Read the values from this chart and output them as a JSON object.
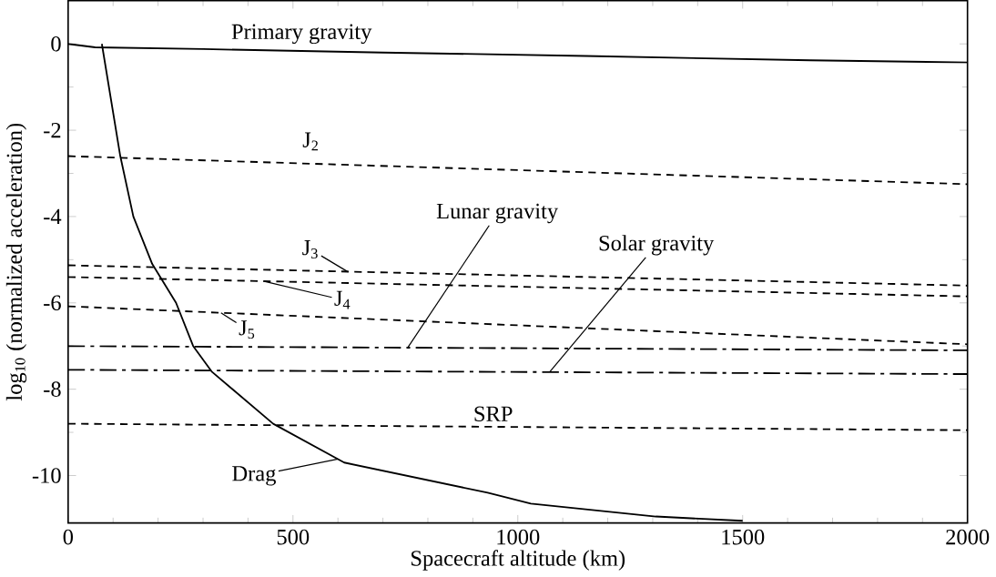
{
  "chart_data": {
    "type": "line",
    "xlabel": "Spacecraft altitude (km)",
    "ylabel": "log$_{10}$ (normalized acceleration)",
    "xlim": [
      0,
      2000
    ],
    "ylim": [
      -11.1,
      1
    ],
    "xticks": [
      0,
      500,
      1000,
      1500,
      2000
    ],
    "yticks": [
      -10,
      -8,
      -6,
      -4,
      -2,
      0
    ],
    "grid": false,
    "marker": "none",
    "series": [
      {
        "color": "#000000",
        "line_style": "solid",
        "x": [
          0,
          60,
          300,
          700,
          1150,
          1650,
          2000
        ],
        "values": [
          0,
          -0.08,
          -0.12,
          -0.2,
          -0.28,
          -0.38,
          -0.43
        ]
      },
      {
        "color": "#000000",
        "line_style": "dashed",
        "x": [
          0,
          2000
        ],
        "values": [
          -2.6,
          -3.25
        ]
      },
      {
        "color": "#000000",
        "line_style": "dashed",
        "x": [
          0,
          2000
        ],
        "values": [
          -5.13,
          -5.6
        ]
      },
      {
        "color": "#000000",
        "line_style": "dashed",
        "x": [
          0,
          2000
        ],
        "values": [
          -5.4,
          -5.85
        ]
      },
      {
        "color": "#000000",
        "line_style": "dashed",
        "x": [
          0,
          2000
        ],
        "values": [
          -6.08,
          -6.96
        ]
      },
      {
        "color": "#000000",
        "line_style": "dashdot",
        "x": [
          0,
          2000
        ],
        "values": [
          -7.0,
          -7.1
        ]
      },
      {
        "color": "#000000",
        "line_style": "dashdot",
        "x": [
          0,
          2000
        ],
        "values": [
          -7.55,
          -7.65
        ]
      },
      {
        "color": "#000000",
        "line_style": "dashed",
        "x": [
          0,
          2000
        ],
        "values": [
          -8.8,
          -8.95
        ]
      },
      {
        "color": "#000000",
        "line_style": "solid",
        "x": [
          75,
          116,
          145,
          187,
          240,
          278,
          320,
          456,
          614,
          933,
          1029,
          1307,
          1500
        ],
        "values": [
          0,
          -2.6,
          -4,
          -5.1,
          -6,
          -7,
          -7.6,
          -8.8,
          -9.7,
          -10.4,
          -10.65,
          -10.95,
          -11.05
        ]
      }
    ],
    "annotations": [
      {
        "text": "Primary gravity",
        "x": 519,
        "y": -0.16
      },
      {
        "text": "J$_{2}$",
        "x": 540,
        "y": -2.78
      },
      {
        "text": "Lunar gravity",
        "x": 755,
        "y": -7.04
      },
      {
        "text": "Solar gravity",
        "x": 1071,
        "y": -7.6
      },
      {
        "text": "J$_{3}$",
        "x": 622,
        "y": -5.28
      },
      {
        "text": "J$_{4}$",
        "x": 436,
        "y": -5.5
      },
      {
        "text": "J$_{5}$",
        "x": 340,
        "y": -6.23
      },
      {
        "text": "SRP",
        "x": 995,
        "y": -8.875
      },
      {
        "text": "Drag",
        "x": 600,
        "y": -9.62
      }
    ]
  }
}
